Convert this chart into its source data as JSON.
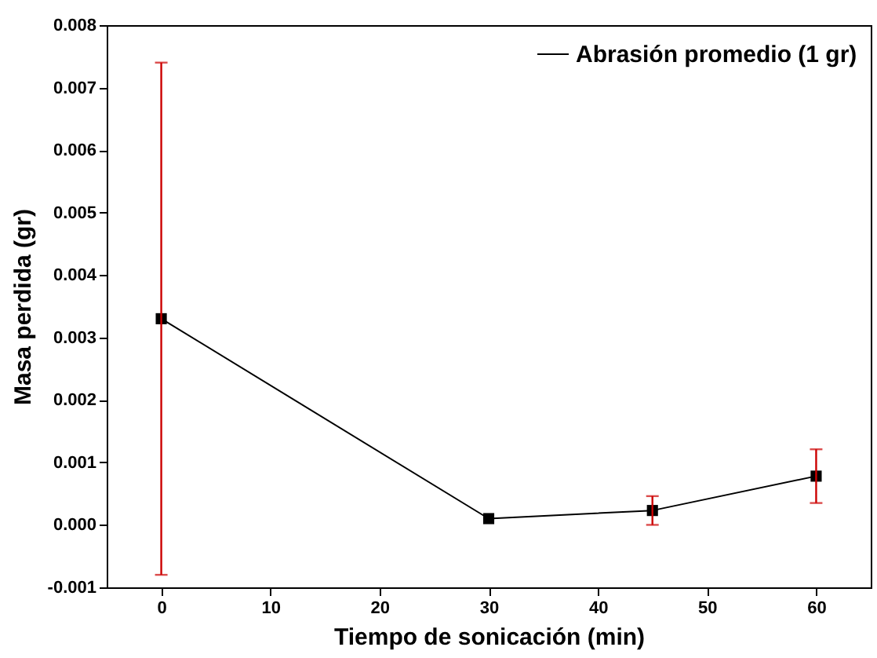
{
  "chart_data": {
    "type": "line",
    "xlabel": "Tiempo de sonicación (min)",
    "ylabel": "Masa perdida (gr)",
    "x": [
      0,
      30,
      45,
      60
    ],
    "series": [
      {
        "name": "Abrasión promedio (1 gr)",
        "color": "#000000",
        "values": [
          0.0033,
          0.0001,
          0.00023,
          0.00078
        ],
        "errors": [
          0.0041,
          null,
          0.00023,
          0.00043
        ]
      }
    ],
    "xlim": [
      -5,
      65
    ],
    "xticks": [
      0,
      10,
      20,
      30,
      40,
      50,
      60
    ],
    "ylim": [
      -0.001,
      0.008
    ],
    "yticks": [
      {
        "value": -0.001,
        "label": "-0.001"
      },
      {
        "value": 0,
        "label": "0.000"
      },
      0.001,
      0.002,
      0.003,
      0.004,
      0.005,
      0.006,
      0.007,
      0.008
    ],
    "marker": "square",
    "line_style": "solid",
    "legend": "top right",
    "grid": false
  }
}
